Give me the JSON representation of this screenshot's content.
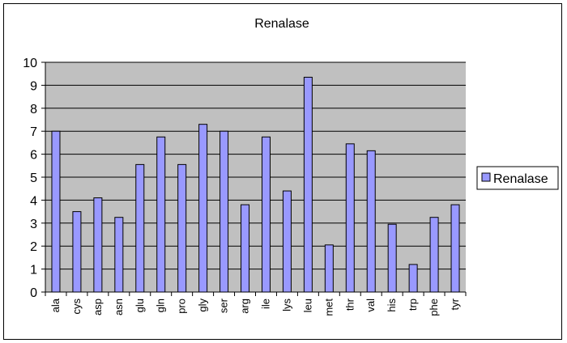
{
  "chart_data": {
    "type": "bar",
    "title": "Renalase",
    "xlabel": "",
    "ylabel": "",
    "ylim": [
      0,
      10
    ],
    "yticks": [
      0,
      1,
      2,
      3,
      4,
      5,
      6,
      7,
      8,
      9,
      10
    ],
    "grid": true,
    "legend": "right",
    "categories": [
      "ala",
      "cys",
      "asp",
      "asn",
      "glu",
      "gln",
      "pro",
      "gly",
      "ser",
      "arg",
      "ile",
      "lys",
      "leu",
      "met",
      "thr",
      "val",
      "his",
      "trp",
      "phe",
      "tyr"
    ],
    "series": [
      {
        "name": "Renalase",
        "values": [
          7.0,
          3.5,
          4.1,
          3.25,
          5.55,
          6.75,
          5.55,
          7.3,
          7.0,
          3.8,
          6.75,
          4.4,
          9.35,
          2.05,
          6.45,
          6.15,
          2.95,
          1.2,
          3.25,
          3.8
        ]
      }
    ],
    "colors": {
      "plot_background": "#c0c0c0",
      "bar_fill": "#9999ff",
      "bar_stroke": "#000000",
      "grid": "#000000"
    }
  }
}
